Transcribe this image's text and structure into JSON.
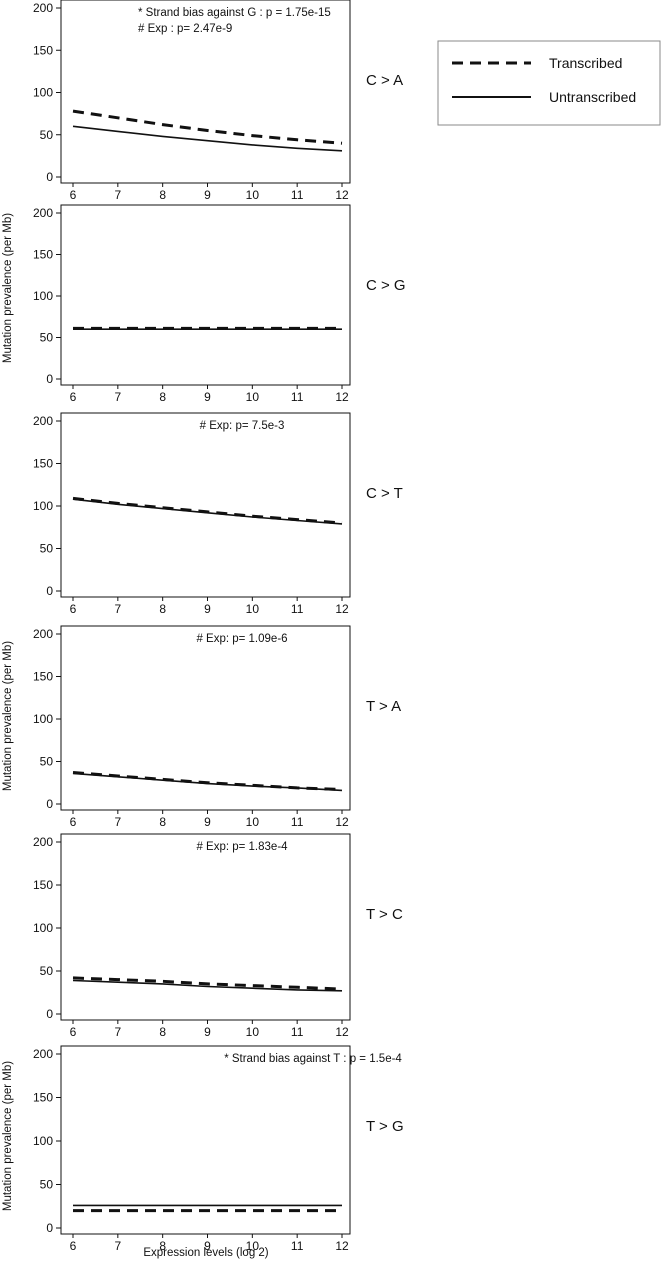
{
  "chart_data": {
    "type": "line",
    "xlabel": "Expression levels (log 2)",
    "ylabel": "Mutation prevalence (per Mb)",
    "xlim": [
      6,
      12
    ],
    "ylim": [
      0,
      200
    ],
    "x_ticks": [
      6,
      7,
      8,
      9,
      10,
      11,
      12
    ],
    "y_ticks": [
      0,
      50,
      100,
      150,
      200
    ],
    "legend": {
      "position": "top-right",
      "entries": [
        {
          "label": "Transcribed",
          "style": "dashed"
        },
        {
          "label": "Untranscribed",
          "style": "solid"
        }
      ]
    },
    "series_names": [
      "Transcribed",
      "Untranscribed"
    ],
    "panels": [
      {
        "label": "C > A",
        "annotations": [
          "* Strand bias against G : p = 1.75e-15",
          "# Exp : p= 2.47e-9"
        ],
        "x": [
          6,
          7,
          8,
          9,
          10,
          11,
          12
        ],
        "series": [
          {
            "name": "Transcribed",
            "values": [
              78,
              70,
              62,
              55,
              49,
              44,
              40
            ]
          },
          {
            "name": "Untranscribed",
            "values": [
              60,
              54,
              48,
              43,
              38,
              34,
              31
            ]
          }
        ]
      },
      {
        "label": "C > G",
        "annotations": [],
        "x": [
          6,
          7,
          8,
          9,
          10,
          11,
          12
        ],
        "series": [
          {
            "name": "Transcribed",
            "values": [
              61,
              61,
              61,
              61,
              61,
              61,
              61
            ]
          },
          {
            "name": "Untranscribed",
            "values": [
              60,
              60,
              60,
              60,
              60,
              60,
              60
            ]
          }
        ]
      },
      {
        "label": "C > T",
        "annotations": [
          "# Exp: p= 7.5e-3"
        ],
        "x": [
          6,
          7,
          8,
          9,
          10,
          11,
          12
        ],
        "series": [
          {
            "name": "Transcribed",
            "values": [
              109,
              103,
              98,
              93,
              88,
              84,
              80
            ]
          },
          {
            "name": "Untranscribed",
            "values": [
              108,
              102,
              97,
              92,
              87,
              83,
              79
            ]
          }
        ]
      },
      {
        "label": "T > A",
        "annotations": [
          "# Exp: p= 1.09e-6"
        ],
        "x": [
          6,
          7,
          8,
          9,
          10,
          11,
          12
        ],
        "series": [
          {
            "name": "Transcribed",
            "values": [
              37,
              33,
              29,
              25,
              22,
              19,
              17
            ]
          },
          {
            "name": "Untranscribed",
            "values": [
              36,
              32,
              28,
              24,
              21,
              19,
              16
            ]
          }
        ]
      },
      {
        "label": "T > C",
        "annotations": [
          "# Exp: p= 1.83e-4"
        ],
        "x": [
          6,
          7,
          8,
          9,
          10,
          11,
          12
        ],
        "series": [
          {
            "name": "Transcribed",
            "values": [
              42,
              40,
              38,
              35,
              33,
              31,
              29
            ]
          },
          {
            "name": "Untranscribed",
            "values": [
              39,
              37,
              35,
              32,
              30,
              28,
              27
            ]
          }
        ]
      },
      {
        "label": "T > G",
        "annotations": [
          "* Strand bias against T :  p = 1.5e-4"
        ],
        "x": [
          6,
          7,
          8,
          9,
          10,
          11,
          12
        ],
        "series": [
          {
            "name": "Transcribed",
            "values": [
              20,
              20,
              20,
              20,
              20,
              20,
              20
            ]
          },
          {
            "name": "Untranscribed",
            "values": [
              26,
              26,
              26,
              26,
              26,
              26,
              26
            ]
          }
        ]
      }
    ]
  }
}
